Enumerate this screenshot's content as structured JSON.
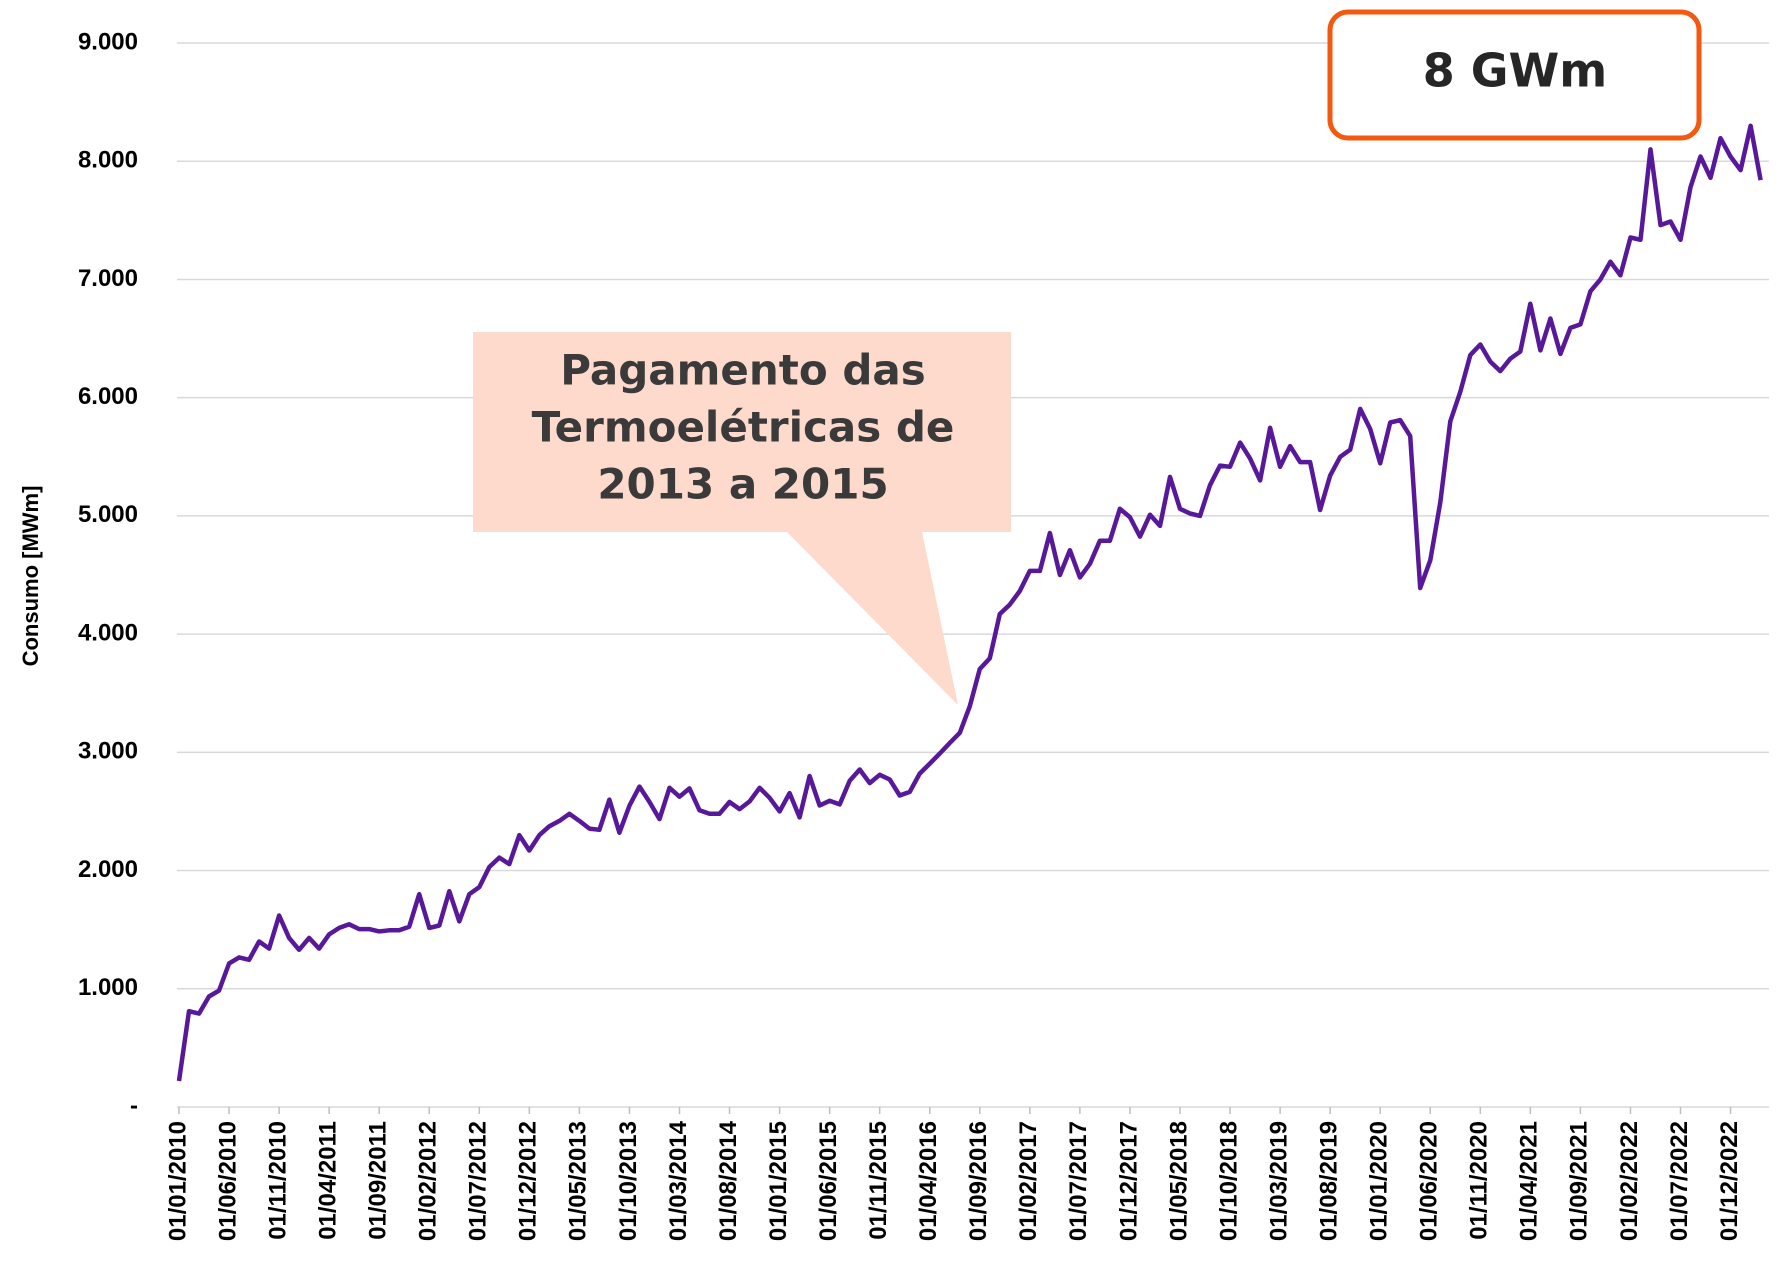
{
  "chart_data": {
    "type": "line",
    "y_label": "Consumo [MWm]",
    "categories": [
      "01/01/2010",
      null,
      null,
      null,
      null,
      "01/06/2010",
      null,
      null,
      null,
      null,
      "01/11/2010",
      null,
      null,
      null,
      null,
      "01/04/2011",
      null,
      null,
      null,
      null,
      "01/09/2011",
      null,
      null,
      null,
      null,
      "01/02/2012",
      null,
      null,
      null,
      null,
      "01/07/2012",
      null,
      null,
      null,
      null,
      "01/12/2012",
      null,
      null,
      null,
      null,
      "01/05/2013",
      null,
      null,
      null,
      null,
      "01/10/2013",
      null,
      null,
      null,
      null,
      "01/03/2014",
      null,
      null,
      null,
      null,
      "01/08/2014",
      null,
      null,
      null,
      null,
      "01/01/2015",
      null,
      null,
      null,
      null,
      "01/06/2015",
      null,
      null,
      null,
      null,
      "01/11/2015",
      null,
      null,
      null,
      null,
      "01/04/2016",
      null,
      null,
      null,
      null,
      "01/09/2016",
      null,
      null,
      null,
      null,
      "01/02/2017",
      null,
      null,
      null,
      null,
      "01/07/2017",
      null,
      null,
      null,
      null,
      "01/12/2017",
      null,
      null,
      null,
      null,
      "01/05/2018",
      null,
      null,
      null,
      null,
      "01/10/2018",
      null,
      null,
      null,
      null,
      "01/03/2019",
      null,
      null,
      null,
      null,
      "01/08/2019",
      null,
      null,
      null,
      null,
      "01/01/2020",
      null,
      null,
      null,
      null,
      "01/06/2020",
      null,
      null,
      null,
      null,
      "01/11/2020",
      null,
      null,
      null,
      null,
      "01/04/2021",
      null,
      null,
      null,
      null,
      "01/09/2021",
      null,
      null,
      null,
      null,
      "01/02/2022",
      null,
      null,
      null,
      null,
      "01/07/2022",
      null,
      null,
      null,
      null,
      "01/12/2022",
      null,
      null,
      null
    ],
    "values": [
      220,
      810,
      790,
      935,
      985,
      1215,
      1265,
      1245,
      1400,
      1340,
      1620,
      1430,
      1330,
      1430,
      1340,
      1460,
      1515,
      1545,
      1505,
      1505,
      1485,
      1495,
      1495,
      1525,
      1800,
      1515,
      1535,
      1825,
      1570,
      1800,
      1860,
      2030,
      2110,
      2055,
      2300,
      2170,
      2300,
      2375,
      2420,
      2480,
      2420,
      2355,
      2345,
      2600,
      2320,
      2550,
      2710,
      2580,
      2435,
      2700,
      2625,
      2695,
      2510,
      2480,
      2480,
      2580,
      2520,
      2585,
      2700,
      2615,
      2500,
      2655,
      2450,
      2800,
      2550,
      2590,
      2560,
      2760,
      2855,
      2740,
      2810,
      2770,
      2635,
      2665,
      2820,
      2905,
      2990,
      3080,
      3165,
      3390,
      3705,
      3795,
      4170,
      4250,
      4365,
      4535,
      4535,
      4855,
      4500,
      4710,
      4480,
      4595,
      4790,
      4790,
      5060,
      4990,
      4825,
      5010,
      4915,
      5330,
      5060,
      5020,
      5000,
      5260,
      5425,
      5415,
      5620,
      5485,
      5300,
      5745,
      5415,
      5590,
      5455,
      5455,
      5050,
      5340,
      5500,
      5560,
      5905,
      5735,
      5445,
      5790,
      5810,
      5675,
      4390,
      4625,
      5115,
      5800,
      6050,
      6360,
      6450,
      6305,
      6225,
      6330,
      6390,
      6795,
      6400,
      6670,
      6370,
      6590,
      6620,
      6900,
      7000,
      7150,
      7035,
      7355,
      7335,
      8100,
      7460,
      7490,
      7335,
      7780,
      8040,
      7860,
      8195,
      8040,
      7925,
      8300,
      7840
    ],
    "color": "#57189a",
    "ylim": [
      0,
      9000
    ],
    "yticks": [
      {
        "value": 0,
        "label": "-"
      },
      {
        "value": 1000,
        "label": "1.000"
      },
      {
        "value": 2000,
        "label": "2.000"
      },
      {
        "value": 3000,
        "label": "3.000"
      },
      {
        "value": 4000,
        "label": "4.000"
      },
      {
        "value": 5000,
        "label": "5.000"
      },
      {
        "value": 6000,
        "label": "6.000"
      },
      {
        "value": 7000,
        "label": "7.000"
      },
      {
        "value": 8000,
        "label": "8.000"
      },
      {
        "value": 9000,
        "label": "9.000"
      }
    ],
    "grid": true,
    "annotations": [
      {
        "text": [
          "Pagamento das",
          "Termoelétricas de",
          "2013 a 2015"
        ]
      },
      {
        "text": "8 GWm"
      }
    ]
  }
}
